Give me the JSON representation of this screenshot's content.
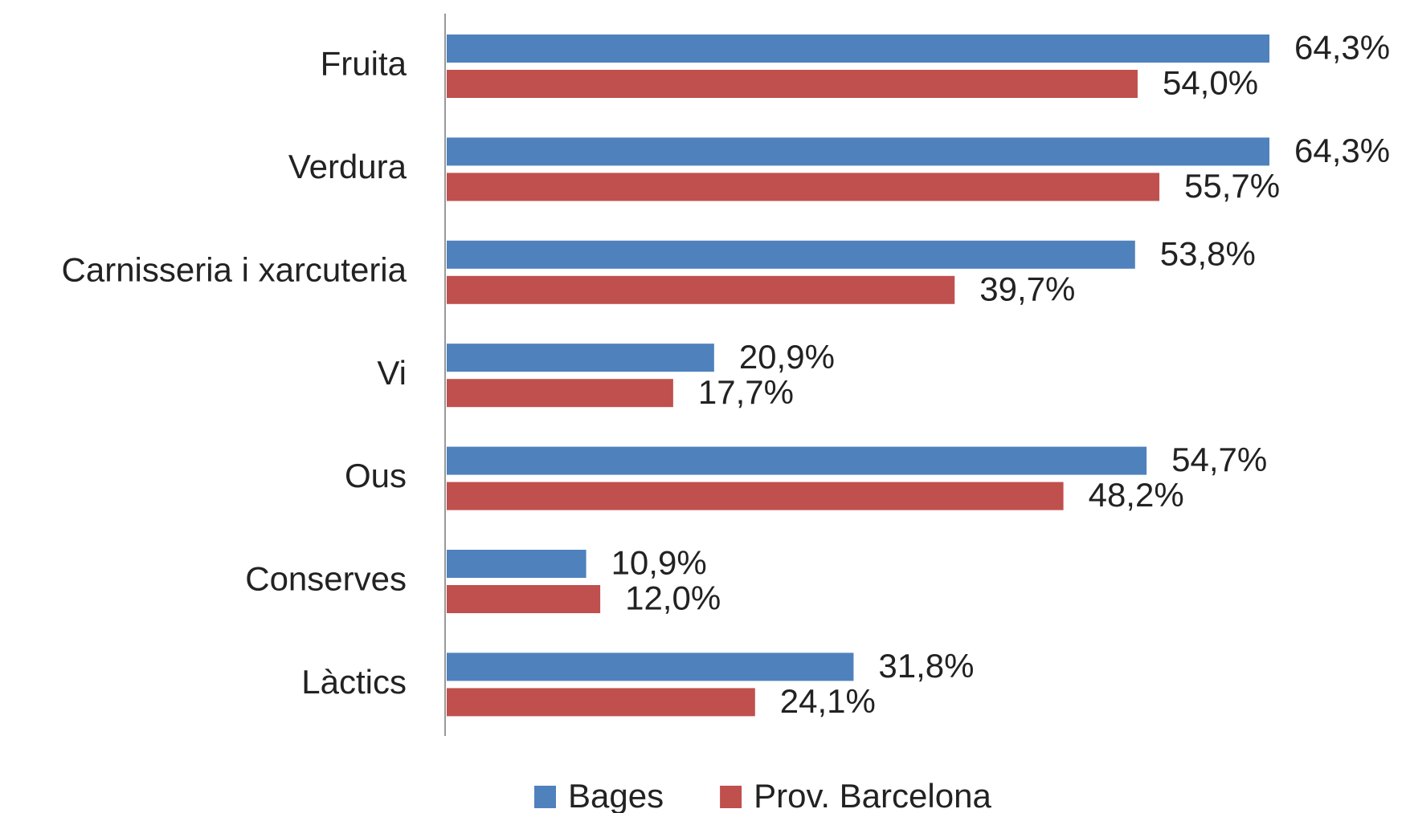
{
  "chart_data": {
    "type": "hbar",
    "categories": [
      "Fruita",
      "Verdura",
      "Carnisseria i xarcuteria",
      "Vi",
      "Ous",
      "Conserves",
      "Làctics"
    ],
    "series": [
      {
        "name": "Bages",
        "color": "#4f81bd",
        "values": [
          64.3,
          64.3,
          53.8,
          20.9,
          54.7,
          10.9,
          31.8
        ],
        "value_labels": [
          "64,3%",
          "64,3%",
          "53,8%",
          "20,9%",
          "54,7%",
          "10,9%",
          "31,8%"
        ]
      },
      {
        "name": "Prov. Barcelona",
        "color": "#c0504d",
        "values": [
          54.0,
          55.7,
          39.7,
          17.7,
          48.2,
          12.0,
          24.1
        ],
        "value_labels": [
          "54,0%",
          "55,7%",
          "39,7%",
          "17,7%",
          "48,2%",
          "12,0%",
          "24,1%"
        ]
      }
    ],
    "legend": "bottom"
  }
}
